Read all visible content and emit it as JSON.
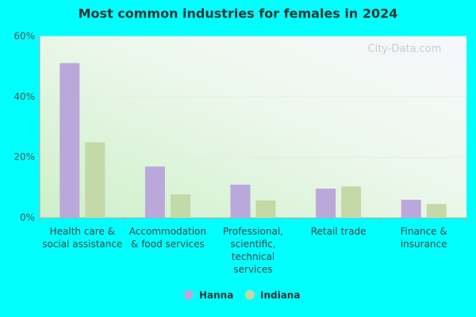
{
  "chart_data": {
    "type": "bar",
    "title": "Most common industries for females in 2024",
    "watermark": "City-Data.com",
    "categories": [
      "Health care & social assistance",
      "Accommodation & food services",
      "Professional, scientific, technical services",
      "Retail trade",
      "Finance & insurance"
    ],
    "series": [
      {
        "name": "Hanna",
        "color": "#bba8da",
        "values": [
          51.2,
          17,
          11,
          9.7,
          6
        ]
      },
      {
        "name": "Indiana",
        "color": "#c4d9a8",
        "values": [
          25,
          7.8,
          5.8,
          10.4,
          4.6
        ]
      }
    ],
    "ylim": [
      0,
      60
    ],
    "yticks": [
      {
        "value": 0,
        "label": "0%"
      },
      {
        "value": 20,
        "label": "20%"
      },
      {
        "value": 40,
        "label": "40%"
      },
      {
        "value": 60,
        "label": "60%"
      }
    ],
    "grid": true,
    "legend": "bottom"
  }
}
